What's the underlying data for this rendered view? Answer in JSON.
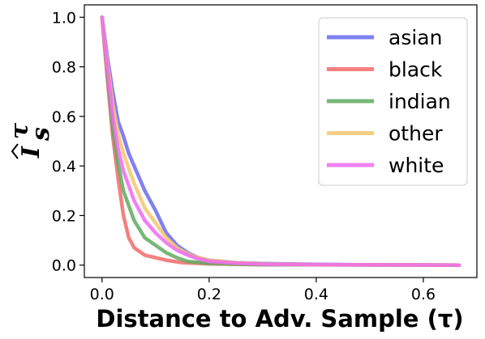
{
  "chart_data": {
    "type": "line",
    "xlabel": "Distance to Adv. Sample (τ)",
    "ylabel_base": "I",
    "ylabel_sub": "s",
    "ylabel_sup": "τ",
    "xlim": [
      -0.033,
      0.7
    ],
    "ylim": [
      -0.05,
      1.05
    ],
    "xticks": [
      0.0,
      0.2,
      0.4,
      0.6
    ],
    "xtick_labels": [
      "0.0",
      "0.2",
      "0.4",
      "0.6"
    ],
    "yticks": [
      0.0,
      0.2,
      0.4,
      0.6,
      0.8,
      1.0
    ],
    "ytick_labels": [
      "0.0",
      "0.2",
      "0.4",
      "0.6",
      "0.8",
      "1.0"
    ],
    "grid": false,
    "legend_position": "top-right",
    "series": [
      {
        "name": "asian",
        "color": "#6a6af2",
        "x": [
          0,
          0.01,
          0.02,
          0.03,
          0.04,
          0.05,
          0.06,
          0.08,
          0.1,
          0.12,
          0.14,
          0.16,
          0.18,
          0.2,
          0.25,
          0.3,
          0.4,
          0.5,
          0.667
        ],
        "y": [
          1.0,
          0.84,
          0.7,
          0.58,
          0.52,
          0.45,
          0.4,
          0.3,
          0.22,
          0.13,
          0.08,
          0.05,
          0.03,
          0.02,
          0.01,
          0.006,
          0.003,
          0.001,
          0.0
        ]
      },
      {
        "name": "black",
        "color": "#f26a6a",
        "x": [
          0,
          0.01,
          0.02,
          0.03,
          0.04,
          0.05,
          0.06,
          0.08,
          0.1,
          0.12,
          0.15,
          0.2,
          0.3,
          0.667
        ],
        "y": [
          1.0,
          0.75,
          0.52,
          0.35,
          0.2,
          0.11,
          0.07,
          0.04,
          0.03,
          0.02,
          0.01,
          0.005,
          0.002,
          0.0
        ]
      },
      {
        "name": "indian",
        "color": "#5faa5f",
        "x": [
          0,
          0.01,
          0.02,
          0.03,
          0.04,
          0.05,
          0.06,
          0.08,
          0.1,
          0.12,
          0.14,
          0.16,
          0.2,
          0.25,
          0.3,
          0.667
        ],
        "y": [
          1.0,
          0.78,
          0.55,
          0.41,
          0.3,
          0.24,
          0.18,
          0.11,
          0.08,
          0.05,
          0.03,
          0.015,
          0.007,
          0.004,
          0.002,
          0.0
        ]
      },
      {
        "name": "other",
        "color": "#f5c46e",
        "x": [
          0,
          0.01,
          0.02,
          0.03,
          0.04,
          0.05,
          0.06,
          0.08,
          0.1,
          0.12,
          0.14,
          0.16,
          0.18,
          0.2,
          0.25,
          0.3,
          0.4,
          0.667
        ],
        "y": [
          1.0,
          0.82,
          0.65,
          0.53,
          0.45,
          0.39,
          0.33,
          0.23,
          0.17,
          0.11,
          0.07,
          0.045,
          0.03,
          0.02,
          0.01,
          0.005,
          0.002,
          0.0
        ]
      },
      {
        "name": "white",
        "color": "#f06af0",
        "x": [
          0,
          0.01,
          0.02,
          0.03,
          0.04,
          0.05,
          0.06,
          0.08,
          0.1,
          0.12,
          0.14,
          0.16,
          0.18,
          0.2,
          0.25,
          0.3,
          0.4,
          0.667
        ],
        "y": [
          1.0,
          0.8,
          0.6,
          0.47,
          0.38,
          0.32,
          0.26,
          0.18,
          0.13,
          0.09,
          0.06,
          0.04,
          0.025,
          0.015,
          0.008,
          0.004,
          0.002,
          0.0
        ]
      }
    ]
  }
}
